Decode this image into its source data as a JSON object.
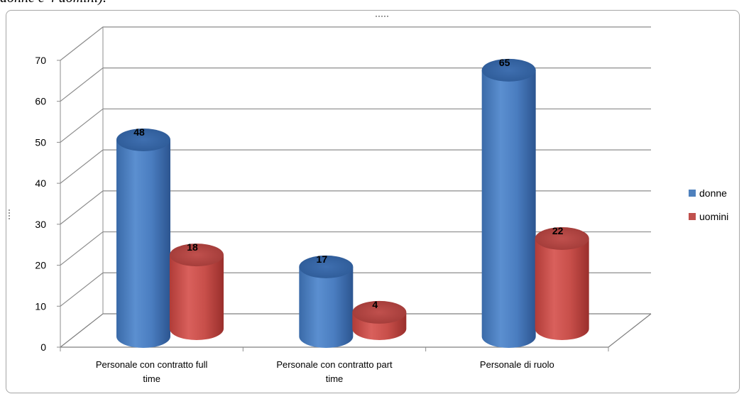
{
  "page": {
    "fragment_text": "donne e 4 uomini)."
  },
  "chart_data": {
    "type": "bar",
    "style": "3d-cylinder",
    "title": "",
    "xlabel": "",
    "ylabel": "",
    "categories": [
      [
        "Personale con contratto full",
        "time"
      ],
      [
        "Personale con contratto part",
        "time"
      ],
      [
        "Personale di ruolo"
      ]
    ],
    "series": [
      {
        "name": "donne",
        "color": "#4f81bd",
        "values": [
          48,
          17,
          65
        ]
      },
      {
        "name": "uomini",
        "color": "#c0504d",
        "values": [
          18,
          4,
          22
        ]
      }
    ],
    "ylim": [
      0,
      70
    ],
    "yticks": [
      0,
      10,
      20,
      30,
      40,
      50,
      60,
      70
    ],
    "grid": true,
    "data_labels": true,
    "legend_position": "right"
  }
}
